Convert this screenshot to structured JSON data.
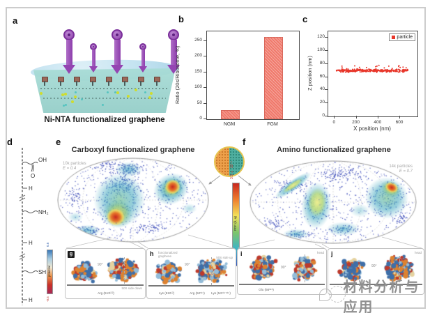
{
  "watermark": {
    "text": "材料分析与应用"
  },
  "panel_a": {
    "label": "a",
    "caption": "Ni-NTA functionalized graphene"
  },
  "panel_b": {
    "label": "b"
  },
  "panel_c": {
    "label": "c"
  },
  "panel_d": {
    "label": "d",
    "groups": {
      "oh": "OH",
      "carbonyl_o": "O",
      "h1": "H",
      "amine": "NH₂",
      "h2": "H",
      "thiol": "SH",
      "h3": "H"
    }
  },
  "panel_e": {
    "label": "e",
    "title": "Carboxyl functionalized graphene",
    "stats_line1": "10k particles",
    "stats_line2": "E = 0.4"
  },
  "panel_f": {
    "label": "f",
    "title": "Amino functionalized graphene",
    "stats_line1": "14k particles",
    "stats_line2": "E = 0.7"
  },
  "inset": {
    "pdf_max": "3.5 × 10⁻⁵",
    "pdf_label": "PDF (θ, φ)",
    "pdf_min": "0"
  },
  "potential_bar": {
    "max": "0.5",
    "label": "potential",
    "min": "-0.5"
  },
  "panel_g": {
    "label": "g",
    "rotation": "90°",
    "side_label": "50S side down",
    "residue_label": "Arg (513ᴸ²²)"
  },
  "panel_h": {
    "label": "h",
    "annotation_line1": "functionalized",
    "annotation_line2": "graphene",
    "side_label": "50S side up",
    "rotation": "90°",
    "residue_labels": [
      "Lys (510ᴸ²)",
      "Arg (52ˢ¹⁹)",
      "Lys (54ˢ¹⁹ˑˢ¹⁹)"
    ]
  },
  "panel_i": {
    "label": "i",
    "head_label": "head",
    "rotation": "90°",
    "residue_label": "Glu (56ˢ¹⁹)"
  },
  "panel_j": {
    "label": "j",
    "head_label": "head",
    "rotation": "90°"
  },
  "chart_data": [
    {
      "id": "ribosome-ratio-bar",
      "type": "bar",
      "categories": [
        "NGM",
        "FGM"
      ],
      "values": [
        30,
        263
      ],
      "title": "",
      "xlabel": "",
      "ylabel": "Ratio (20s/Ribosome, %)",
      "ylim": [
        0,
        280
      ],
      "yticks": [
        0,
        50,
        100,
        150,
        200,
        250
      ],
      "bar_color": "#f0796b",
      "grid": false
    },
    {
      "id": "particle-z-position-scatter",
      "type": "scatter",
      "xlabel": "X position (nm)",
      "ylabel": "Z position (nm)",
      "xlim": [
        -60,
        760
      ],
      "ylim": [
        0,
        130
      ],
      "xticks": [
        0,
        200,
        400,
        600
      ],
      "yticks": [
        0,
        20,
        40,
        60,
        80,
        100,
        120
      ],
      "legend": [
        {
          "label": "particle",
          "color": "#e8362a"
        }
      ],
      "legend_position": "top-right",
      "grid": false,
      "series": [
        {
          "name": "particle",
          "shape": "horizontal noisy band",
          "x_range": [
            15,
            675
          ],
          "z_mean": 70,
          "z_spread": 3.2,
          "n_points": 330,
          "color": "#e8362a",
          "seed": 7
        }
      ]
    },
    {
      "id": "carboxyl-orientation-map",
      "type": "heatmap",
      "projection": "mollweide",
      "title": "Carboxyl functionalized graphene",
      "particles": "10k particles",
      "efficiency": "E = 0.4",
      "dot_color": "#3a49b8",
      "seed": 11,
      "dots": {
        "n_background": 500,
        "clusters": [
          {
            "x": 0.43,
            "y": 0.32,
            "sx": 0.1,
            "sy": 0.12,
            "n": 160
          },
          {
            "x": 0.4,
            "y": 0.6,
            "sx": 0.09,
            "sy": 0.14,
            "n": 90
          },
          {
            "x": 0.75,
            "y": 0.37,
            "sx": 0.09,
            "sy": 0.12,
            "n": 130
          },
          {
            "x": 0.47,
            "y": 0.13,
            "sx": 0.08,
            "sy": 0.06,
            "n": 100
          },
          {
            "x": 0.2,
            "y": 0.86,
            "sx": 0.08,
            "sy": 0.05,
            "n": 80
          },
          {
            "x": 0.3,
            "y": 0.08,
            "sx": 0.12,
            "sy": 0.05,
            "n": 70
          },
          {
            "x": 0.6,
            "y": 0.82,
            "sx": 0.1,
            "sy": 0.06,
            "n": 60
          },
          {
            "x": 0.12,
            "y": 0.45,
            "sx": 0.06,
            "sy": 0.1,
            "n": 50
          }
        ]
      },
      "hotspots": [
        {
          "x": 0.41,
          "y": 0.5,
          "rx": 0.17,
          "ry": 0.32,
          "rot": 8,
          "ramp": "cool2"
        },
        {
          "x": 0.4,
          "y": 0.66,
          "rx": 0.1,
          "ry": 0.17,
          "rot": 12,
          "ramp": "warm"
        },
        {
          "x": 0.385,
          "y": 0.7,
          "rx": 0.06,
          "ry": 0.1,
          "rot": 12,
          "ramp": "hot"
        },
        {
          "x": 0.75,
          "y": 0.37,
          "rx": 0.12,
          "ry": 0.18,
          "rot": -28,
          "ramp": "cool2"
        },
        {
          "x": 0.755,
          "y": 0.355,
          "rx": 0.075,
          "ry": 0.12,
          "rot": -28,
          "ramp": "warm"
        },
        {
          "x": 0.76,
          "y": 0.345,
          "rx": 0.05,
          "ry": 0.085,
          "rot": -28,
          "ramp": "hot"
        },
        {
          "x": 0.47,
          "y": 0.14,
          "rx": 0.09,
          "ry": 0.09,
          "rot": 0,
          "ramp": "cool"
        },
        {
          "x": 0.2,
          "y": 0.86,
          "rx": 0.085,
          "ry": 0.07,
          "rot": 0,
          "ramp": "cool"
        },
        {
          "x": 0.87,
          "y": 0.6,
          "rx": 0.05,
          "ry": 0.06,
          "rot": 0,
          "ramp": "coolf"
        },
        {
          "x": 0.12,
          "y": 0.7,
          "rx": 0.05,
          "ry": 0.06,
          "rot": 0,
          "ramp": "coolf"
        }
      ]
    },
    {
      "id": "amino-orientation-map",
      "type": "heatmap",
      "projection": "mollweide",
      "title": "Amino functionalized graphene",
      "particles": "14k particles",
      "efficiency": "E = 0.7",
      "dot_color": "#3a49b8",
      "seed": 23,
      "dots": {
        "n_background": 520,
        "clusters": [
          {
            "x": 0.26,
            "y": 0.3,
            "sx": 0.1,
            "sy": 0.06,
            "n": 80
          },
          {
            "x": 0.4,
            "y": 0.54,
            "sx": 0.07,
            "sy": 0.18,
            "n": 100
          },
          {
            "x": 0.55,
            "y": 0.16,
            "sx": 0.12,
            "sy": 0.08,
            "n": 120
          },
          {
            "x": 0.82,
            "y": 0.45,
            "sx": 0.1,
            "sy": 0.16,
            "n": 120
          },
          {
            "x": 0.56,
            "y": 0.82,
            "sx": 0.09,
            "sy": 0.05,
            "n": 60
          },
          {
            "x": 0.28,
            "y": 0.88,
            "sx": 0.08,
            "sy": 0.04,
            "n": 50
          },
          {
            "x": 0.9,
            "y": 0.7,
            "sx": 0.05,
            "sy": 0.06,
            "n": 40
          },
          {
            "x": 0.14,
            "y": 0.75,
            "sx": 0.06,
            "sy": 0.06,
            "n": 40
          }
        ]
      },
      "hotspots": [
        {
          "x": 0.26,
          "y": 0.3,
          "rx": 0.13,
          "ry": 0.065,
          "rot": -35,
          "ramp": "cool2"
        },
        {
          "x": 0.26,
          "y": 0.3,
          "rx": 0.07,
          "ry": 0.035,
          "rot": -35,
          "ramp": "yellowv"
        },
        {
          "x": 0.4,
          "y": 0.54,
          "rx": 0.09,
          "ry": 0.28,
          "rot": 4,
          "ramp": "cool2"
        },
        {
          "x": 0.405,
          "y": 0.5,
          "rx": 0.055,
          "ry": 0.17,
          "rot": 4,
          "ramp": "yellowv"
        },
        {
          "x": 0.82,
          "y": 0.45,
          "rx": 0.13,
          "ry": 0.25,
          "rot": 10,
          "ramp": "cool2"
        },
        {
          "x": 0.845,
          "y": 0.34,
          "rx": 0.065,
          "ry": 0.1,
          "rot": 25,
          "ramp": "warm"
        },
        {
          "x": 0.85,
          "y": 0.325,
          "rx": 0.04,
          "ry": 0.06,
          "rot": 25,
          "ramp": "hot"
        },
        {
          "x": 0.56,
          "y": 0.82,
          "rx": 0.1,
          "ry": 0.085,
          "rot": 0,
          "ramp": "cool"
        },
        {
          "x": 0.28,
          "y": 0.88,
          "rx": 0.08,
          "ry": 0.06,
          "rot": 0,
          "ramp": "cool"
        },
        {
          "x": 0.66,
          "y": 0.6,
          "rx": 0.06,
          "ry": 0.08,
          "rot": 0,
          "ramp": "coolf"
        }
      ]
    }
  ]
}
